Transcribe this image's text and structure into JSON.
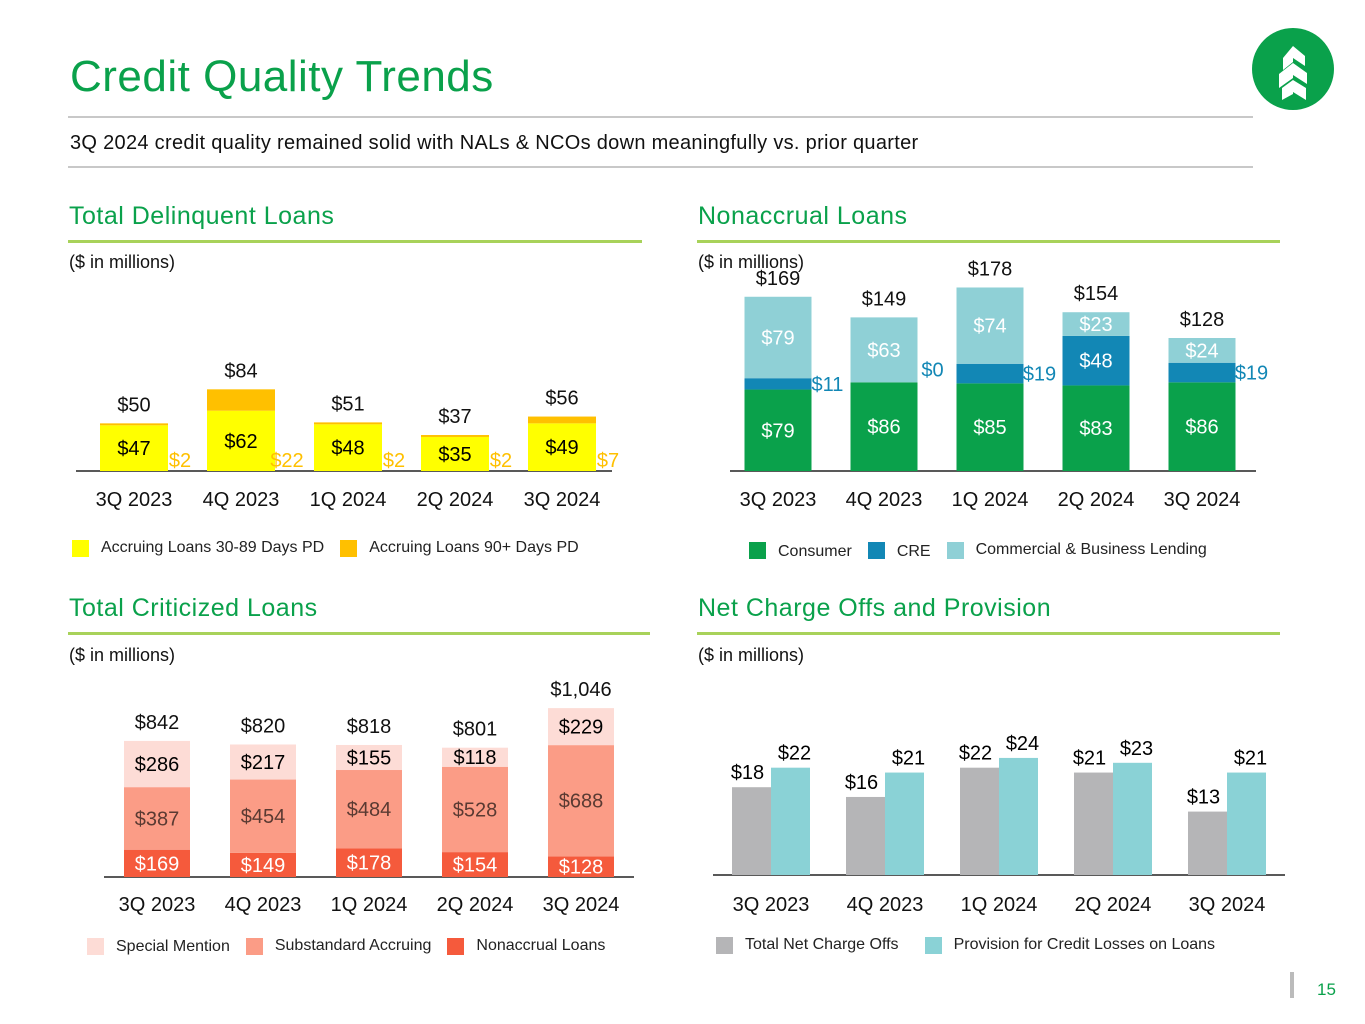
{
  "header": {
    "title": "Credit Quality Trends",
    "subtitle": "3Q 2024 credit quality remained solid with NALs & NCOs down meaningfully vs. prior quarter",
    "logo_icon": "tree-logo-icon",
    "page_number": "15"
  },
  "colors": {
    "brand_green": "#0aa14b",
    "rule_green": "#a8d25a"
  },
  "chart_data": [
    {
      "id": "delinquent",
      "type": "bar",
      "stacked": true,
      "title": "Total Delinquent Loans",
      "unit_label": "($ in millions)",
      "categories": [
        "3Q 2023",
        "4Q 2023",
        "1Q 2024",
        "2Q 2024",
        "3Q 2024"
      ],
      "series": [
        {
          "name": "Accruing Loans 30-89 Days PD",
          "color": "#ffff00",
          "label_color": "#000000",
          "values": [
            47,
            62,
            48,
            35,
            49
          ],
          "labels": [
            "$47",
            "$62",
            "$48",
            "$35",
            "$49"
          ]
        },
        {
          "name": "Accruing Loans 90+ Days PD",
          "color": "#ffc000",
          "label_color": "#ffc000",
          "values": [
            2,
            22,
            2,
            2,
            7
          ],
          "labels": [
            "$2",
            "$22",
            "$2",
            "$2",
            "$7"
          ]
        }
      ],
      "totals": [
        "$50",
        "$84",
        "$51",
        "$37",
        "$56"
      ],
      "ylim": [
        0,
        90
      ]
    },
    {
      "id": "nonaccrual",
      "type": "bar",
      "stacked": true,
      "title": "Nonaccrual Loans",
      "unit_label": "($ in millions)",
      "categories": [
        "3Q 2023",
        "4Q 2023",
        "1Q 2024",
        "2Q 2024",
        "3Q 2024"
      ],
      "series": [
        {
          "name": "Consumer",
          "color": "#0aa14b",
          "label_color": "#ffffff",
          "values": [
            79,
            86,
            85,
            83,
            86
          ],
          "labels": [
            "$79",
            "$86",
            "$85",
            "$83",
            "$86"
          ]
        },
        {
          "name": "CRE",
          "color": "#1287b5",
          "label_color": "#ffffff",
          "values": [
            11,
            0,
            19,
            48,
            19
          ],
          "labels": [
            "$11",
            "$0",
            "$19",
            "$48",
            "$19"
          ]
        },
        {
          "name": "Commercial & Business Lending",
          "color": "#8fd0d6",
          "label_color": "#ffffff",
          "values": [
            79,
            63,
            74,
            23,
            24
          ],
          "labels": [
            "$79",
            "$63",
            "$74",
            "$23",
            "$24"
          ]
        }
      ],
      "totals": [
        "$169",
        "$149",
        "$178",
        "$154",
        "$128"
      ],
      "ylim": [
        0,
        190
      ]
    },
    {
      "id": "criticized",
      "type": "bar",
      "stacked": true,
      "title": "Total Criticized Loans",
      "unit_label": "($ in millions)",
      "categories": [
        "3Q 2023",
        "4Q 2023",
        "1Q 2024",
        "2Q 2024",
        "3Q 2024"
      ],
      "series": [
        {
          "name": "Nonaccrual Loans",
          "color": "#f55a3c",
          "label_color": "#ffffff",
          "values": [
            169,
            149,
            178,
            154,
            128
          ],
          "labels": [
            "$169",
            "$149",
            "$178",
            "$154",
            "$128"
          ]
        },
        {
          "name": "Substandard Accruing",
          "color": "#fb9c86",
          "label_color": "#5a3a32",
          "values": [
            387,
            454,
            484,
            528,
            688
          ],
          "labels": [
            "$387",
            "$454",
            "$484",
            "$528",
            "$688"
          ]
        },
        {
          "name": "Special Mention",
          "color": "#fddcd6",
          "label_color": "#000000",
          "values": [
            286,
            217,
            155,
            118,
            229
          ],
          "labels": [
            "$286",
            "$217",
            "$155",
            "$118",
            "$229"
          ]
        }
      ],
      "totals": [
        "$842",
        "$820",
        "$818",
        "$801",
        "$1,046"
      ],
      "ylim": [
        0,
        1100
      ]
    },
    {
      "id": "nco",
      "type": "bar",
      "stacked": false,
      "title": "Net Charge Offs and Provision",
      "unit_label": "($ in millions)",
      "categories": [
        "3Q 2023",
        "4Q 2023",
        "1Q 2024",
        "2Q 2024",
        "3Q 2024"
      ],
      "series": [
        {
          "name": "Total Net Charge Offs",
          "color": "#b5b5b7",
          "label_color": "#000000",
          "values": [
            18,
            16,
            22,
            21,
            13
          ],
          "labels": [
            "$18",
            "$16",
            "$22",
            "$21",
            "$13"
          ]
        },
        {
          "name": "Provision for Credit Losses on Loans",
          "color": "#8ad2d6",
          "label_color": "#000000",
          "values": [
            22,
            21,
            24,
            23,
            21
          ],
          "labels": [
            "$22",
            "$21",
            "$24",
            "$23",
            "$21"
          ]
        }
      ],
      "ylim": [
        0,
        30
      ]
    }
  ]
}
